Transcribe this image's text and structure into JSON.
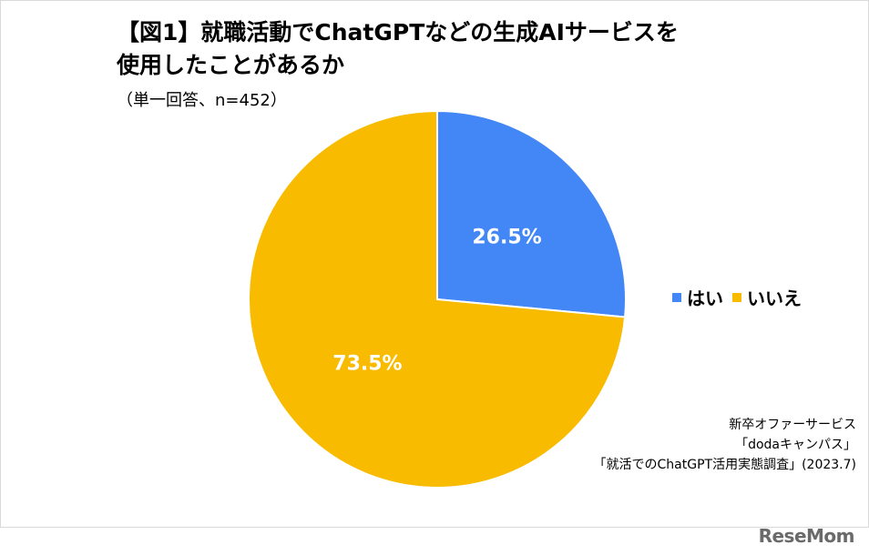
{
  "chart_data": {
    "type": "pie",
    "title_line1": "【図1】就職活動でChatGPTなどの生成AIサービスを",
    "title_line2": "使用したことがあるか",
    "subtitle": "（単一回答、n=452）",
    "categories": [
      "はい",
      "いいえ"
    ],
    "values": [
      26.5,
      73.5
    ],
    "data_labels": [
      "26.5%",
      "73.5%"
    ],
    "colors": [
      "#4287f5",
      "#f8bb00"
    ],
    "start": "12 o'clock, clockwise",
    "legend_position": "right"
  },
  "source": {
    "line1": "新卒オファーサービス",
    "line2": "「dodaキャンパス」",
    "line3": "「就活でのChatGPT活用実態調査」(2023.7)"
  },
  "watermark": "ReseMom"
}
